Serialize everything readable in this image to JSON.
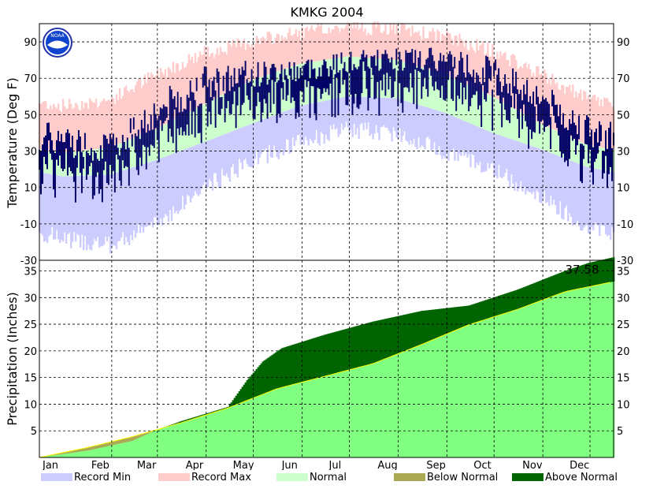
{
  "chart_data": [
    {
      "type": "area",
      "title": "KMKG 2004",
      "ylabel": "Temperature (Deg F)",
      "ylim": [
        -30,
        100
      ],
      "yticks": [
        -30,
        -10,
        10,
        30,
        50,
        70,
        90
      ],
      "xticks": [
        "Jan",
        "Feb",
        "Mar",
        "Apr",
        "May",
        "Jun",
        "Jul",
        "Aug",
        "Sep",
        "Oct",
        "Nov",
        "Dec"
      ],
      "grid": true,
      "series_colors": {
        "record_min": "#ccccff",
        "record_max": "#ffcccc",
        "normal": "#ccffcc",
        "observed": "#000066"
      },
      "climatology_by_month": {
        "months": [
          1,
          2,
          3,
          4,
          5,
          6,
          7,
          8,
          9,
          10,
          11,
          12
        ],
        "record_max": [
          55,
          58,
          72,
          84,
          90,
          95,
          98,
          97,
          93,
          85,
          72,
          58
        ],
        "record_min": [
          -18,
          -22,
          -10,
          10,
          25,
          35,
          42,
          40,
          30,
          20,
          5,
          -12
        ],
        "normal_high": [
          29,
          32,
          42,
          56,
          69,
          78,
          82,
          80,
          72,
          60,
          45,
          33
        ],
        "normal_low": [
          16,
          17,
          25,
          35,
          45,
          55,
          60,
          59,
          51,
          40,
          31,
          21
        ]
      },
      "observed_monthly_range": {
        "months": [
          1,
          2,
          3,
          4,
          5,
          6,
          7,
          8,
          9,
          10,
          11,
          12
        ],
        "high": [
          45,
          40,
          62,
          78,
          80,
          82,
          85,
          87,
          87,
          83,
          68,
          50
        ],
        "low": [
          0,
          -2,
          10,
          25,
          40,
          45,
          55,
          55,
          50,
          35,
          25,
          0
        ]
      }
    },
    {
      "type": "area",
      "ylabel": "Precipitation (Inches)",
      "ylim": [
        0,
        37
      ],
      "yticks": [
        5,
        10,
        15,
        20,
        25,
        30,
        35
      ],
      "xticks": [
        "Jan",
        "Feb",
        "Mar",
        "Apr",
        "May",
        "Jun",
        "Jul",
        "Aug",
        "Sep",
        "Oct",
        "Nov",
        "Dec"
      ],
      "grid": true,
      "annotation": "37.58",
      "series_colors": {
        "normal": "#80ff80",
        "below_normal": "#aaaa55",
        "above_normal": "#006400",
        "normal_line": "#ffff00"
      },
      "cumulative_normal": {
        "day": [
          1,
          32,
          60,
          91,
          121,
          152,
          182,
          213,
          244,
          274,
          305,
          335,
          366
        ],
        "value": [
          0,
          1.9,
          3.9,
          6.5,
          9.3,
          12.9,
          15.2,
          17.6,
          21.2,
          24.9,
          27.8,
          31.1,
          33.0
        ]
      },
      "cumulative_observed": {
        "day": [
          1,
          32,
          60,
          75,
          91,
          121,
          133,
          143,
          155,
          182,
          213,
          244,
          274,
          305,
          335,
          350,
          366
        ],
        "value": [
          0,
          1.3,
          3.1,
          5.1,
          6.8,
          9.5,
          14.5,
          18.0,
          20.5,
          23.0,
          25.5,
          27.5,
          28.5,
          31.5,
          35.0,
          36.5,
          37.58
        ]
      }
    }
  ],
  "legend": [
    {
      "label": "Record Min",
      "color": "#ccccff"
    },
    {
      "label": "Record Max",
      "color": "#ffcccc"
    },
    {
      "label": "Normal",
      "color": "#ccffcc"
    },
    {
      "label": "Below Normal",
      "color": "#aaaa55"
    },
    {
      "label": "Above Normal",
      "color": "#006400"
    }
  ],
  "logo": {
    "text": "NOAA"
  }
}
